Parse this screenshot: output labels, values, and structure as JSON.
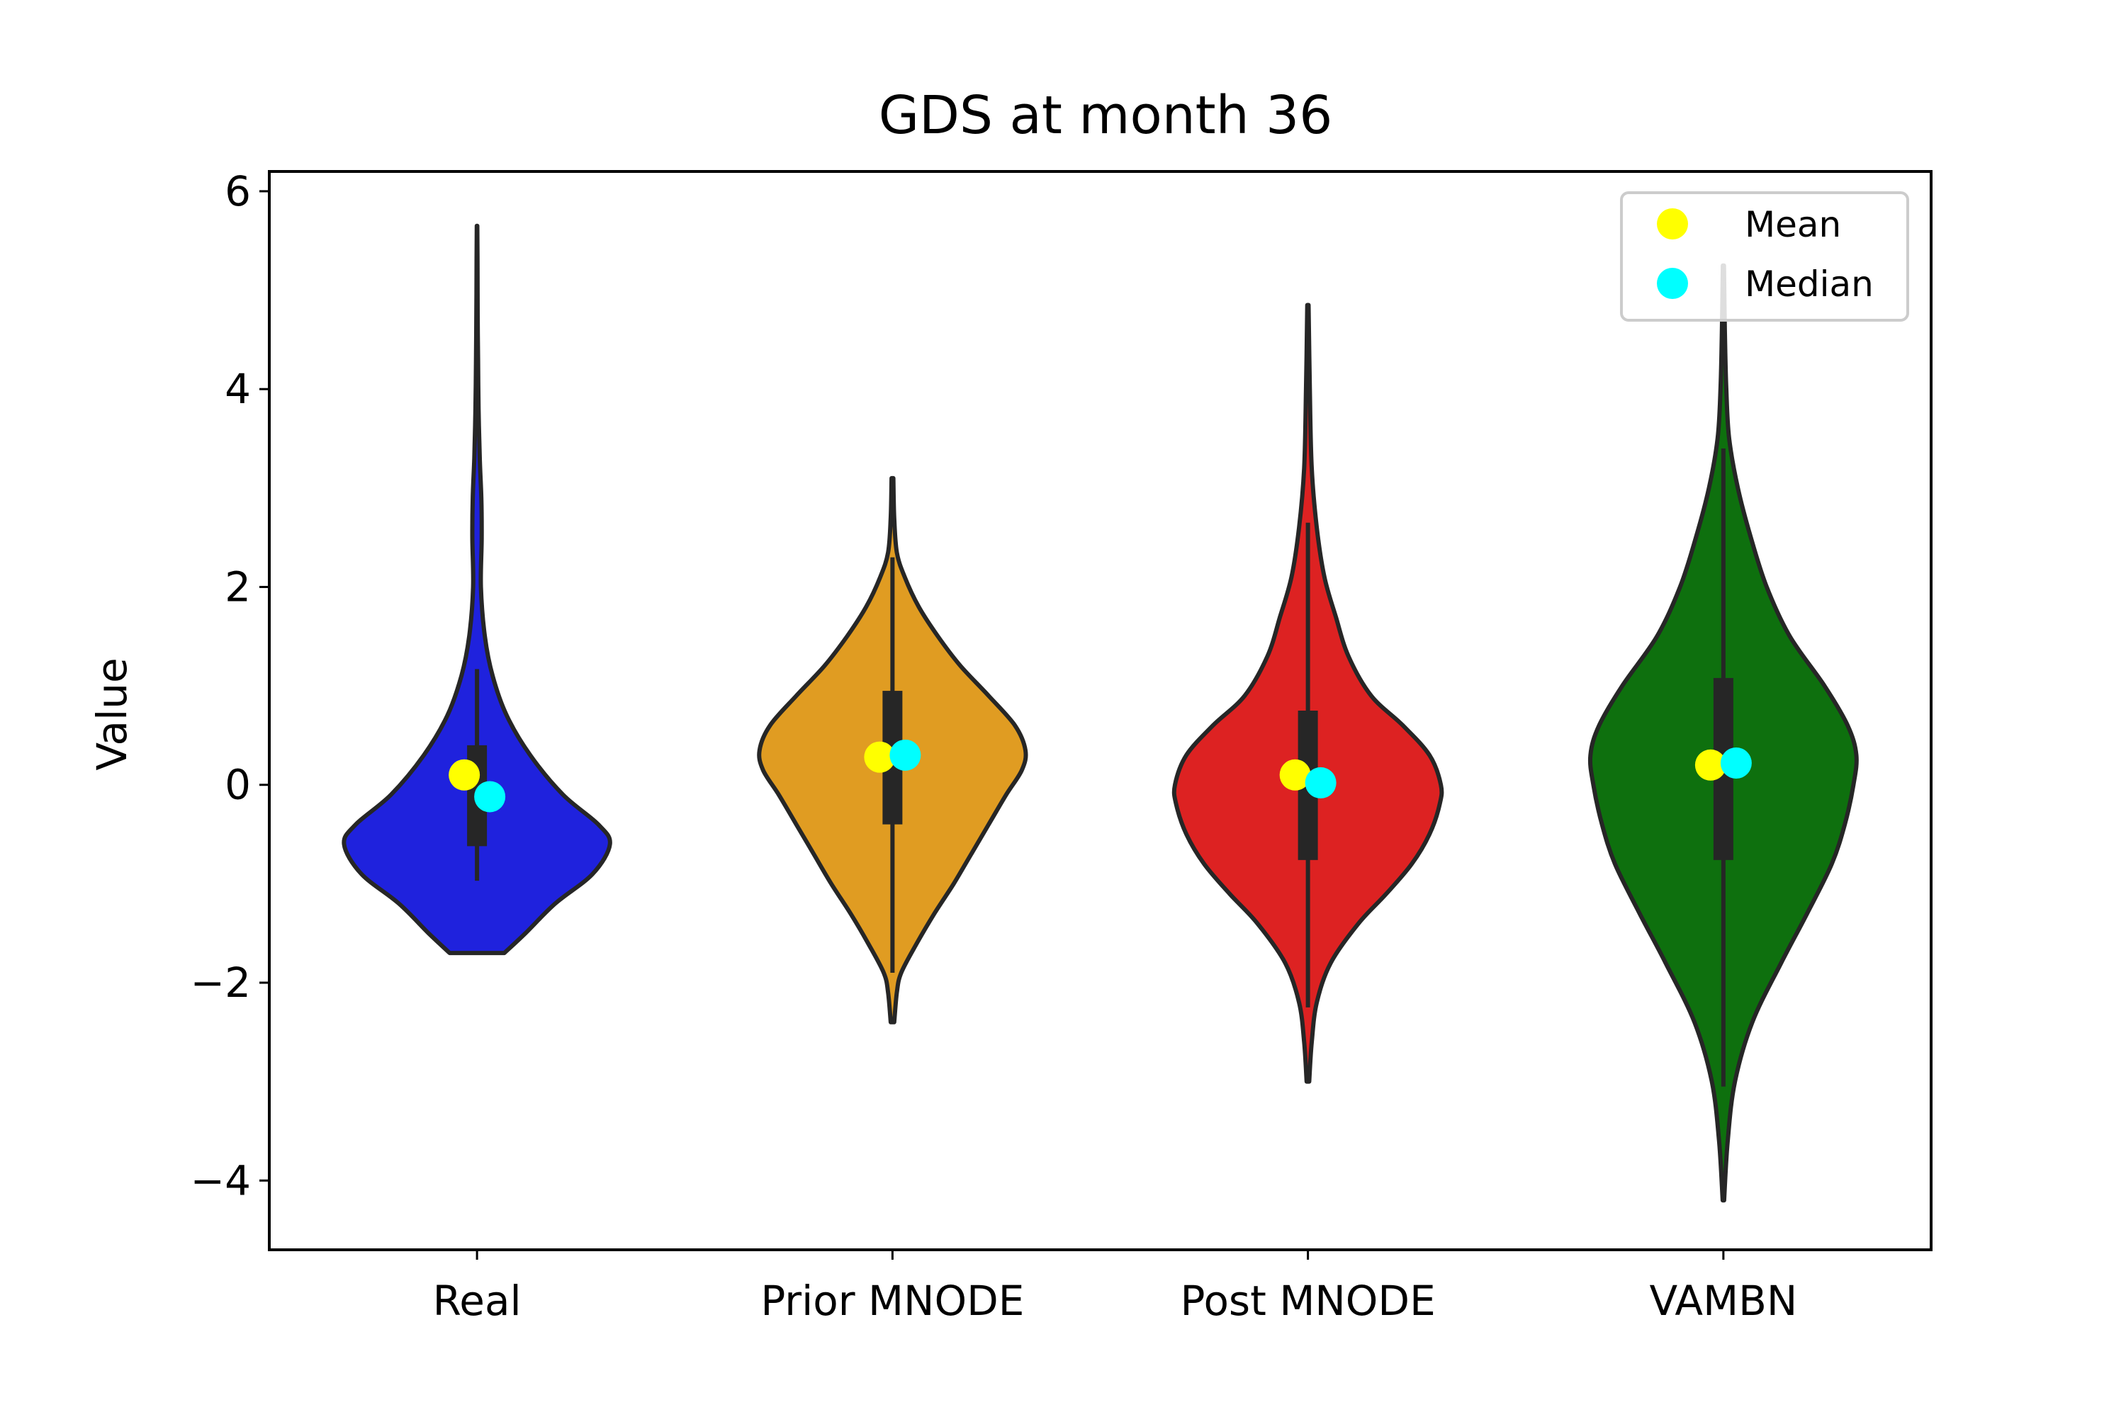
{
  "chart_data": {
    "type": "violin",
    "title": "GDS at month 36",
    "xlabel": "",
    "ylabel": "Value",
    "ylim": [
      -4.7,
      6.2
    ],
    "yticks": [
      -4,
      -2,
      0,
      2,
      4,
      6
    ],
    "ytick_labels": [
      "−4",
      "−2",
      "0",
      "2",
      "4",
      "6"
    ],
    "grid": false,
    "legend": {
      "placement": "top-right",
      "entries": [
        {
          "label": "Mean",
          "color": "#ffff00"
        },
        {
          "label": "Median",
          "color": "#00ffff"
        }
      ]
    },
    "categories": [
      "Real",
      "Prior MNODE",
      "Post MNODE",
      "VAMBN"
    ],
    "violins": [
      {
        "category": "Real",
        "color": "#1f22dd",
        "min": -1.7,
        "max": 5.65,
        "box": {
          "q1": -0.62,
          "q3": 0.4,
          "whisker_low": -0.97,
          "whisker_high": 1.17
        },
        "mean": 0.1,
        "median": -0.12,
        "density": [
          [
            -1.7,
            0.35
          ],
          [
            -1.5,
            0.62
          ],
          [
            -1.2,
            1.0
          ],
          [
            -0.9,
            1.48
          ],
          [
            -0.6,
            1.7
          ],
          [
            -0.4,
            1.55
          ],
          [
            -0.1,
            1.1
          ],
          [
            0.3,
            0.68
          ],
          [
            0.7,
            0.38
          ],
          [
            1.1,
            0.2
          ],
          [
            1.5,
            0.1
          ],
          [
            2.0,
            0.05
          ],
          [
            2.5,
            0.06
          ],
          [
            2.9,
            0.055
          ],
          [
            3.3,
            0.035
          ],
          [
            3.8,
            0.02
          ],
          [
            4.3,
            0.013
          ],
          [
            4.8,
            0.008
          ],
          [
            5.3,
            0.006
          ],
          [
            5.65,
            0.003
          ]
        ]
      },
      {
        "category": "Prior MNODE",
        "color": "#e09c22",
        "min": -2.4,
        "max": 3.1,
        "box": {
          "q1": -0.4,
          "q3": 0.95,
          "whisker_low": -1.9,
          "whisker_high": 2.3
        },
        "mean": 0.28,
        "median": 0.3,
        "density": [
          [
            -2.4,
            0.02
          ],
          [
            -2.1,
            0.05
          ],
          [
            -1.9,
            0.1
          ],
          [
            -1.6,
            0.28
          ],
          [
            -1.3,
            0.48
          ],
          [
            -1.0,
            0.7
          ],
          [
            -0.7,
            0.9
          ],
          [
            -0.4,
            1.1
          ],
          [
            -0.1,
            1.3
          ],
          [
            0.15,
            1.48
          ],
          [
            0.35,
            1.52
          ],
          [
            0.6,
            1.4
          ],
          [
            0.9,
            1.1
          ],
          [
            1.2,
            0.78
          ],
          [
            1.5,
            0.52
          ],
          [
            1.8,
            0.3
          ],
          [
            2.1,
            0.14
          ],
          [
            2.35,
            0.05
          ],
          [
            2.7,
            0.02
          ],
          [
            3.1,
            0.01
          ]
        ]
      },
      {
        "category": "Post MNODE",
        "color": "#dd2222",
        "min": -3.0,
        "max": 4.85,
        "box": {
          "q1": -0.76,
          "q3": 0.75,
          "whisker_low": -2.25,
          "whisker_high": 2.65
        },
        "mean": 0.1,
        "median": 0.02,
        "density": [
          [
            -3.0,
            0.01
          ],
          [
            -2.6,
            0.03
          ],
          [
            -2.2,
            0.07
          ],
          [
            -1.8,
            0.18
          ],
          [
            -1.4,
            0.4
          ],
          [
            -1.1,
            0.62
          ],
          [
            -0.8,
            0.82
          ],
          [
            -0.5,
            0.96
          ],
          [
            -0.2,
            1.04
          ],
          [
            0.0,
            1.05
          ],
          [
            0.3,
            0.96
          ],
          [
            0.6,
            0.75
          ],
          [
            0.9,
            0.5
          ],
          [
            1.3,
            0.32
          ],
          [
            1.7,
            0.22
          ],
          [
            2.1,
            0.13
          ],
          [
            2.6,
            0.07
          ],
          [
            3.2,
            0.03
          ],
          [
            4.0,
            0.015
          ],
          [
            4.85,
            0.005
          ]
        ]
      },
      {
        "category": "VAMBN",
        "color": "#0e700e",
        "min": -4.2,
        "max": 5.25,
        "box": {
          "q1": -0.76,
          "q3": 1.08,
          "whisker_low": -3.05,
          "whisker_high": 3.4
        },
        "mean": 0.2,
        "median": 0.22,
        "density": [
          [
            -4.2,
            0.005
          ],
          [
            -3.6,
            0.03
          ],
          [
            -3.0,
            0.08
          ],
          [
            -2.4,
            0.2
          ],
          [
            -1.8,
            0.4
          ],
          [
            -1.3,
            0.58
          ],
          [
            -0.8,
            0.75
          ],
          [
            -0.4,
            0.84
          ],
          [
            0.0,
            0.9
          ],
          [
            0.3,
            0.92
          ],
          [
            0.6,
            0.86
          ],
          [
            1.0,
            0.7
          ],
          [
            1.5,
            0.46
          ],
          [
            2.0,
            0.3
          ],
          [
            2.5,
            0.19
          ],
          [
            3.0,
            0.1
          ],
          [
            3.5,
            0.04
          ],
          [
            4.0,
            0.02
          ],
          [
            4.6,
            0.01
          ],
          [
            5.25,
            0.004
          ]
        ]
      }
    ]
  }
}
